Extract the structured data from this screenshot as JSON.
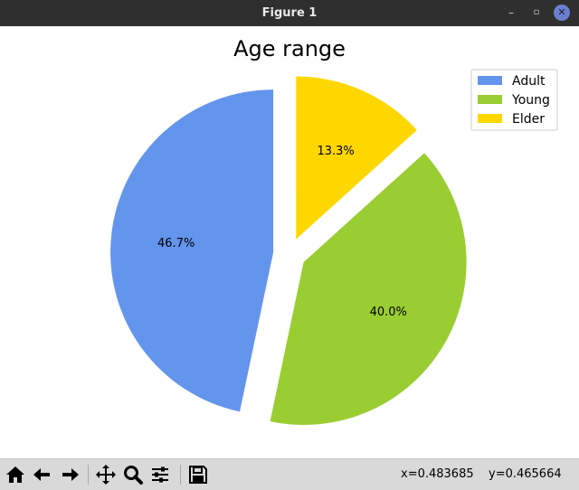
{
  "window": {
    "title": "Figure 1",
    "minimize_glyph": "–",
    "maximize_glyph": "▫",
    "close_glyph": "✕"
  },
  "chart_data": {
    "type": "pie",
    "title": "Age range",
    "categories": [
      "Adult",
      "Young",
      "Elder"
    ],
    "values": [
      46.7,
      40.0,
      13.3
    ],
    "labels": [
      "46.7%",
      "40.0%",
      "13.3%"
    ],
    "colors": [
      "#6495ED",
      "#9ACD32",
      "#FFD700"
    ],
    "start_angle_deg": 90,
    "direction": "counterclockwise",
    "explode": [
      0.1,
      0.1,
      0.1
    ],
    "legend": "top-right"
  },
  "toolbar": {
    "icons": [
      "home-icon",
      "back-arrow-icon",
      "forward-arrow-icon",
      "pan-icon",
      "zoom-icon",
      "configure-subplots-icon",
      "save-icon"
    ],
    "x_readout": "x=0.483685",
    "y_readout": "y=0.465664"
  }
}
